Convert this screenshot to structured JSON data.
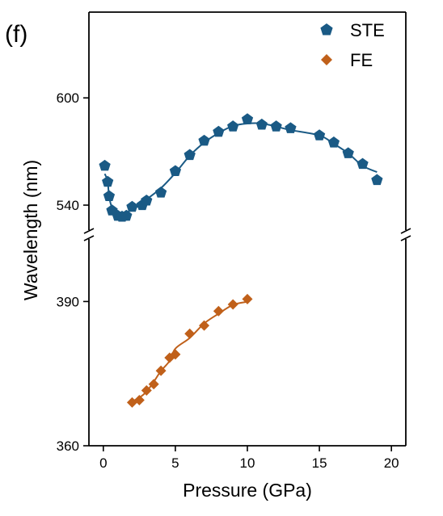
{
  "panel_label": "(f)",
  "colors": {
    "ste": "#1a5a85",
    "fe": "#c0601a",
    "axis": "#000000"
  },
  "chart_data": {
    "type": "scatter",
    "title": "",
    "xlabel": "Pressure (GPa)",
    "ylabel": "Wavelength (nm)",
    "xlim": [
      -1,
      21
    ],
    "x_ticks": [
      0,
      5,
      10,
      15,
      20
    ],
    "broken_y_axis": true,
    "upper_ylim": [
      526,
      648
    ],
    "upper_y_ticks": [
      540,
      600
    ],
    "lower_ylim": [
      360,
      403
    ],
    "lower_y_ticks": [
      360,
      390
    ],
    "legend": {
      "position": "top-right",
      "entries": [
        "STE",
        "FE"
      ]
    },
    "series": [
      {
        "name": "STE",
        "marker": "pentagon",
        "panel": "upper",
        "x": [
          0.1,
          0.3,
          0.4,
          0.6,
          1.0,
          1.3,
          1.6,
          2.0,
          2.7,
          3.0,
          4.0,
          5.0,
          6.0,
          7.0,
          8.0,
          9.0,
          10.0,
          11.0,
          12.0,
          13.0,
          15.0,
          16.0,
          17.0,
          18.0,
          19.0
        ],
        "y": [
          562,
          553,
          545,
          537,
          534,
          533.5,
          534,
          539,
          540,
          542.5,
          547,
          559,
          568,
          576,
          581,
          584,
          588,
          585,
          584,
          583,
          579,
          575,
          569,
          563,
          554
        ]
      },
      {
        "name": "FE",
        "marker": "diamond",
        "panel": "lower",
        "x": [
          2.0,
          2.5,
          3.0,
          3.5,
          4.0,
          4.6,
          5.0,
          6.0,
          7.0,
          8.0,
          9.0,
          10.0
        ],
        "y": [
          369,
          369.5,
          371.5,
          372.8,
          375.6,
          378.3,
          379,
          383.3,
          385,
          388,
          389.4,
          390.5
        ]
      }
    ]
  }
}
